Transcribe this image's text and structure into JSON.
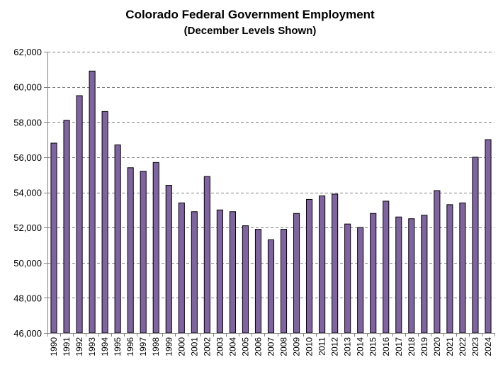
{
  "chart_data": {
    "type": "bar",
    "title": "Colorado  Federal Government Employment",
    "subtitle": "(December Levels Shown)",
    "xlabel": "",
    "ylabel": "",
    "ylim": [
      46000,
      62000
    ],
    "yticks": [
      "46,000",
      "48,000",
      "50,000",
      "52,000",
      "54,000",
      "56,000",
      "58,000",
      "60,000",
      "62,000"
    ],
    "ytick_values": [
      46000,
      48000,
      50000,
      52000,
      54000,
      56000,
      58000,
      60000,
      62000
    ],
    "categories": [
      "1990",
      "1991",
      "1992",
      "1993",
      "1994",
      "1995",
      "1996",
      "1997",
      "1998",
      "1999",
      "2000",
      "2001",
      "2002",
      "2003",
      "2004",
      "2005",
      "2006",
      "2007",
      "2008",
      "2009",
      "2010",
      "2011",
      "2012",
      "2013",
      "2014",
      "2015",
      "2016",
      "2017",
      "2018",
      "2019",
      "2020",
      "2021",
      "2022",
      "2023",
      "2024"
    ],
    "values": [
      56800,
      58100,
      59500,
      60900,
      58600,
      56700,
      55400,
      55200,
      55700,
      54400,
      53400,
      52900,
      54900,
      53000,
      52900,
      52100,
      51900,
      51300,
      51900,
      52800,
      53600,
      53800,
      53900,
      52200,
      52000,
      52800,
      53500,
      52600,
      52500,
      52700,
      54100,
      53300,
      53400,
      56000,
      57000
    ],
    "grid": true,
    "bar_color": "#8064a2",
    "bar_edge_color": "#000000",
    "grid_color": "#808080"
  }
}
